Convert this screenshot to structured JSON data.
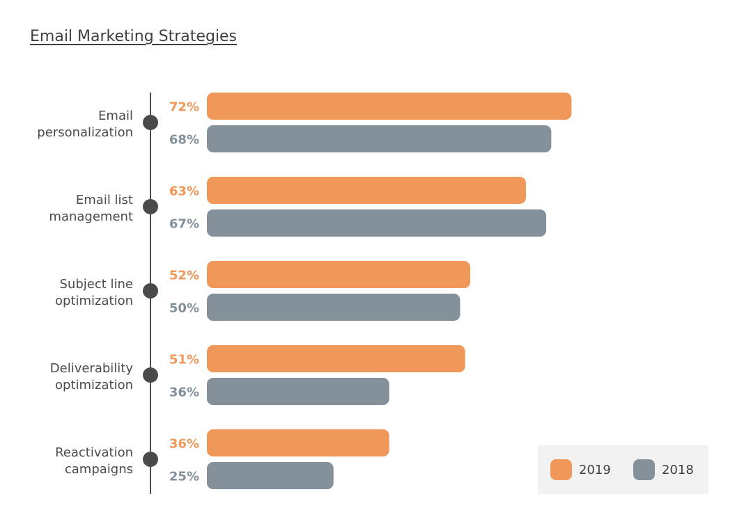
{
  "chart_data": {
    "type": "bar",
    "orientation": "horizontal",
    "title": "Email Marketing Strategies",
    "categories": [
      [
        "Email",
        "personalization"
      ],
      [
        "Email list",
        "management"
      ],
      [
        "Subject line",
        "optimization"
      ],
      [
        "Deliverability",
        "optimization"
      ],
      [
        "Reactivation",
        "campaigns"
      ]
    ],
    "series": [
      {
        "name": "2019",
        "color": "#f0985a",
        "values": [
          72,
          63,
          52,
          51,
          36
        ],
        "labels": [
          "72%",
          "63%",
          "52%",
          "51%",
          "36%"
        ]
      },
      {
        "name": "2018",
        "color": "#84919b",
        "values": [
          68,
          67,
          50,
          36,
          25
        ],
        "labels": [
          "68%",
          "67%",
          "50%",
          "36%",
          "25%"
        ]
      }
    ],
    "xlim": [
      0,
      100
    ],
    "grid": false,
    "legend_position": "bottom-right"
  }
}
